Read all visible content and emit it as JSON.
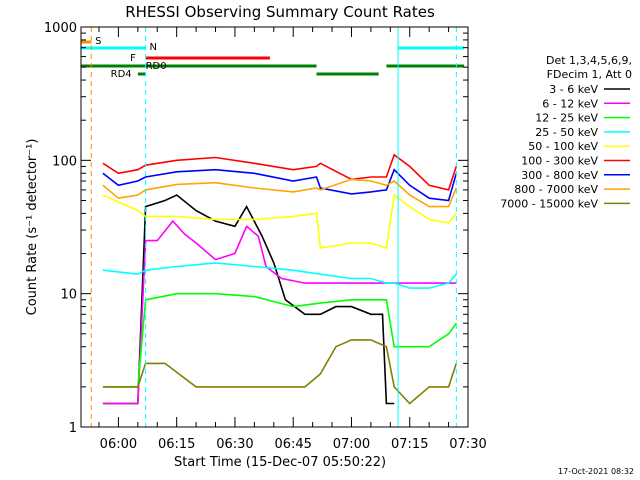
{
  "chart_data": {
    "type": "line",
    "title": "RHESSI Observing Summary Count Rates",
    "xlabel": "Start Time (15-Dec-07 05:50:22)",
    "ylabel": "Count Rate (s⁻¹ detector⁻¹)",
    "y_scale": "log",
    "ylim": [
      1,
      1000
    ],
    "xlim": [
      "05:50:22",
      "07:30:00"
    ],
    "x_ticks": [
      "06:00",
      "06:15",
      "06:30",
      "06:45",
      "07:00",
      "07:15",
      "07:30"
    ],
    "y_ticks": [
      "1",
      "10",
      "100",
      "1000"
    ],
    "footer_date": "17-Oct-2021 08:32",
    "legend_header": [
      "Det 1,3,4,5,6,9,",
      "FDecim 1, Att 0"
    ],
    "flags": [
      {
        "label": "S",
        "color": "#ff8c00",
        "segments": [
          [
            "05:50:22",
            "05:53:00"
          ]
        ]
      },
      {
        "label": "N",
        "color": "#00ffff",
        "segments": [
          [
            "05:50:22",
            "06:07:00"
          ],
          [
            "07:12:00",
            "07:29:00"
          ]
        ]
      },
      {
        "label": "F",
        "color": "#ff0000",
        "segments": [
          [
            "06:07:00",
            "06:39:00"
          ]
        ]
      },
      {
        "label": "RD0",
        "color": "#008000",
        "segments": [
          [
            "05:50:22",
            "06:51:00"
          ],
          [
            "06:51:00",
            "07:07:00"
          ],
          [
            "07:09:00",
            "07:29:00"
          ]
        ]
      },
      {
        "label": "RD4",
        "color": "#008000",
        "segments": [
          [
            "06:05:00",
            "06:07:00"
          ]
        ]
      }
    ],
    "vlines": [
      {
        "time": "05:53:00",
        "color": "#ff8c00"
      },
      {
        "time": "06:07:00",
        "color": "#00ffff"
      },
      {
        "time": "07:12:00",
        "color": "#00ffff"
      },
      {
        "time": "07:27:00",
        "color": "#00ffff"
      }
    ],
    "series": [
      {
        "name": "3 - 6 keV",
        "color": "#000000",
        "x": [
          "05:56",
          "06:05",
          "06:07",
          "06:12",
          "06:15",
          "06:20",
          "06:25",
          "06:30",
          "06:33",
          "06:37",
          "06:40",
          "06:43",
          "06:48",
          "06:52",
          "06:56",
          "07:00",
          "07:05",
          "07:08",
          "07:09",
          "07:11"
        ],
        "y": [
          1.5,
          1.5,
          45,
          50,
          55,
          42,
          35,
          32,
          45,
          27,
          17,
          9,
          7,
          7,
          8,
          8,
          7,
          7,
          1.5,
          1.5
        ]
      },
      {
        "name": "6 - 12 keV",
        "color": "#ff00ff",
        "x": [
          "05:56",
          "06:05",
          "06:07",
          "06:10",
          "06:14",
          "06:17",
          "06:20",
          "06:25",
          "06:30",
          "06:33",
          "06:36",
          "06:38",
          "06:42",
          "06:48",
          "06:52",
          "06:58",
          "07:05",
          "07:09",
          "07:11",
          "07:15",
          "07:20",
          "07:25",
          "07:27"
        ],
        "y": [
          1.5,
          1.5,
          25,
          25,
          35,
          28,
          24,
          18,
          20,
          32,
          27,
          16,
          13,
          12,
          12,
          12,
          12,
          12,
          12,
          12,
          12,
          12,
          12
        ]
      },
      {
        "name": "12 - 25 keV",
        "color": "#00ff00",
        "x": [
          "05:56",
          "06:05",
          "06:07",
          "06:15",
          "06:25",
          "06:35",
          "06:45",
          "06:52",
          "07:00",
          "07:05",
          "07:09",
          "07:11",
          "07:15",
          "07:20",
          "07:25",
          "07:27"
        ],
        "y": [
          2,
          2,
          9,
          10,
          10,
          9.5,
          8,
          8.5,
          9,
          9,
          9,
          4,
          4,
          4,
          5,
          6
        ]
      },
      {
        "name": "25 - 50 keV",
        "color": "#00ffff",
        "x": [
          "05:56",
          "06:05",
          "06:07",
          "06:15",
          "06:25",
          "06:35",
          "06:45",
          "06:52",
          "07:00",
          "07:05",
          "07:09",
          "07:11",
          "07:15",
          "07:20",
          "07:25",
          "07:27"
        ],
        "y": [
          15,
          14,
          15,
          16,
          17,
          16,
          15,
          14,
          13,
          13,
          12,
          12,
          11,
          11,
          12,
          14
        ]
      },
      {
        "name": "50 - 100 keV",
        "color": "#ffff00",
        "x": [
          "05:56",
          "06:05",
          "06:07",
          "06:15",
          "06:25",
          "06:35",
          "06:45",
          "06:51",
          "06:52",
          "07:00",
          "07:05",
          "07:09",
          "07:11",
          "07:15",
          "07:20",
          "07:25",
          "07:27"
        ],
        "y": [
          55,
          42,
          38,
          38,
          36,
          36,
          38,
          40,
          22,
          24,
          24,
          22,
          55,
          45,
          36,
          34,
          40
        ]
      },
      {
        "name": "100 - 300 keV",
        "color": "#ff0000",
        "x": [
          "05:56",
          "06:00",
          "06:05",
          "06:07",
          "06:15",
          "06:25",
          "06:35",
          "06:45",
          "06:51",
          "06:52",
          "07:00",
          "07:05",
          "07:09",
          "07:11",
          "07:15",
          "07:20",
          "07:25",
          "07:27"
        ],
        "y": [
          95,
          80,
          85,
          92,
          100,
          105,
          95,
          85,
          90,
          95,
          72,
          75,
          75,
          110,
          90,
          65,
          60,
          90
        ]
      },
      {
        "name": "300 - 800 keV",
        "color": "#0000ff",
        "x": [
          "05:56",
          "06:00",
          "06:05",
          "06:07",
          "06:15",
          "06:25",
          "06:35",
          "06:45",
          "06:51",
          "06:52",
          "07:00",
          "07:05",
          "07:09",
          "07:11",
          "07:15",
          "07:20",
          "07:25",
          "07:27"
        ],
        "y": [
          80,
          65,
          70,
          75,
          82,
          85,
          80,
          70,
          75,
          62,
          56,
          58,
          60,
          85,
          65,
          52,
          50,
          80
        ]
      },
      {
        "name": "800 - 7000 keV",
        "color": "#ffa500",
        "x": [
          "05:56",
          "06:00",
          "06:05",
          "06:07",
          "06:15",
          "06:25",
          "06:35",
          "06:45",
          "06:51",
          "06:52",
          "07:00",
          "07:05",
          "07:09",
          "07:11",
          "07:15",
          "07:20",
          "07:25",
          "07:27"
        ],
        "y": [
          65,
          52,
          55,
          60,
          66,
          68,
          62,
          58,
          62,
          60,
          72,
          70,
          65,
          70,
          55,
          45,
          45,
          62
        ]
      },
      {
        "name": "7000 - 15000 keV",
        "color": "#808000",
        "x": [
          "05:56",
          "06:05",
          "06:07",
          "06:12",
          "06:20",
          "06:30",
          "06:40",
          "06:48",
          "06:52",
          "06:56",
          "07:00",
          "07:05",
          "07:09",
          "07:11",
          "07:15",
          "07:20",
          "07:25",
          "07:27"
        ],
        "y": [
          2,
          2,
          3,
          3,
          2,
          2,
          2,
          2,
          2.5,
          4,
          4.5,
          4.5,
          4,
          2,
          1.5,
          2,
          2,
          3
        ]
      }
    ]
  }
}
